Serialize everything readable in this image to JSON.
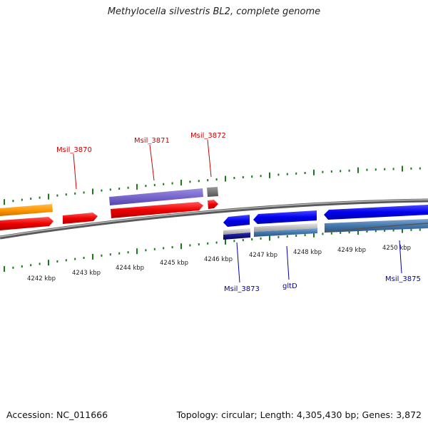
{
  "title": "Methylocella silvestris BL2, complete genome",
  "footer": {
    "accession": "Accession: NC_011666",
    "summary": "Topology: circular; Length: 4,305,430 bp; Genes: 3,872"
  },
  "scale_labels": [
    "4242 kbp",
    "4243 kbp",
    "4244 kbp",
    "4245 kbp",
    "4246 kbp",
    "4247 kbp",
    "4248 kbp",
    "4249 kbp",
    "4250 kbp"
  ],
  "gene_labels": {
    "msil_3870": "Msil_3870",
    "msil_3871": "Msil_3871",
    "msil_3872": "Msil_3872",
    "msil_3873": "Msil_3873",
    "gltd": "gltD",
    "msil_3875": "Msil_3875"
  },
  "colors": {
    "backbone": "#808080",
    "forward_cds": "#ee0000",
    "reverse_cds": "#0000ee",
    "tick": "#1a7a1a",
    "forward_label": "#cc0000",
    "reverse_label": "#0000aa",
    "orange_feature": "#ff9900",
    "purple_feature": "#7766cc",
    "gray_feature": "#777777",
    "steelblue_feature": "#4477aa"
  }
}
